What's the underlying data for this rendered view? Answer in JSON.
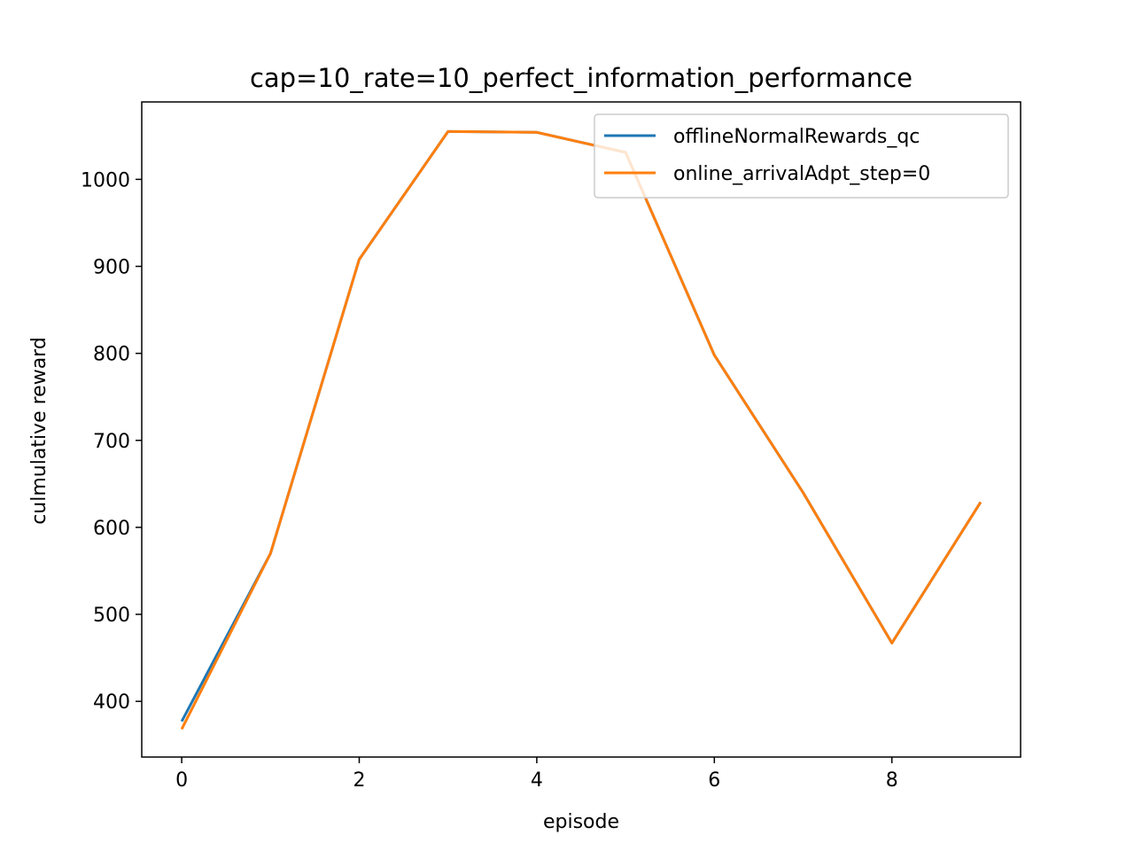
{
  "chart_data": {
    "type": "line",
    "title": "cap=10_rate=10_perfect_information_performance",
    "xlabel": "episode",
    "ylabel": "culmulative reward",
    "xlim": [
      -0.45,
      9.45
    ],
    "ylim": [
      336,
      1089
    ],
    "x_ticks": [
      0,
      2,
      4,
      6,
      8
    ],
    "y_ticks": [
      400,
      500,
      600,
      700,
      800,
      900,
      1000
    ],
    "grid": false,
    "legend_position": "top-right",
    "x": [
      0,
      1,
      2,
      3,
      4,
      5,
      6,
      7,
      8,
      9
    ],
    "series": [
      {
        "name": "offlineNormalRewards_qc",
        "color": "#1f77b4",
        "values": [
          377,
          570,
          908,
          1055,
          1054,
          1031,
          798,
          640,
          467,
          629
        ]
      },
      {
        "name": "online_arrivalAdpt_step=0",
        "color": "#ff7f0e",
        "values": [
          368,
          570,
          908,
          1055,
          1054,
          1031,
          798,
          640,
          467,
          629
        ]
      }
    ]
  }
}
